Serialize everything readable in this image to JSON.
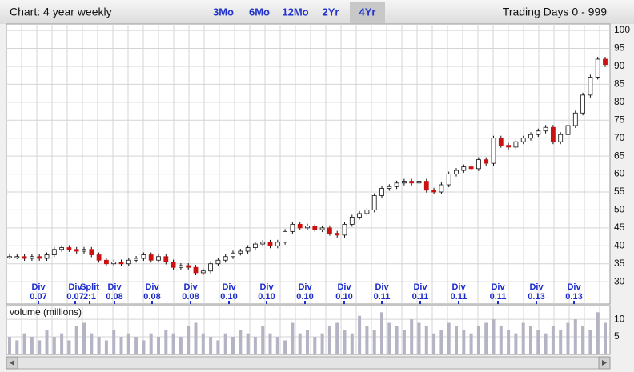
{
  "chart_data": {
    "type": "candlestick",
    "title": "Chart: 4 year weekly",
    "ranges": [
      "3Mo",
      "6Mo",
      "12Mo",
      "2Yr",
      "4Yr"
    ],
    "selected_range": 4,
    "trading_days": "Trading Days 0 - 999",
    "up_color": "#ffffff",
    "down_color": "#cc1111",
    "grid": true,
    "ylim": [
      23.8,
      101.8
    ],
    "yticks": [
      30,
      35,
      40,
      45,
      50,
      55,
      60,
      65,
      70,
      75,
      80,
      85,
      90,
      95,
      100
    ],
    "values": [
      37,
      37,
      36.5,
      37,
      36.5,
      37.5,
      39,
      39.5,
      39,
      38.5,
      39,
      37.5,
      36,
      35,
      35.5,
      35,
      36,
      36.5,
      37.5,
      36,
      37,
      35.5,
      34,
      34.5,
      34,
      32.5,
      33,
      35,
      36,
      37,
      38,
      38.5,
      39.5,
      40.5,
      41,
      40,
      41,
      44,
      46,
      45,
      45.5,
      44.5,
      45,
      43.5,
      43,
      46,
      48,
      49,
      50,
      54,
      56,
      56.5,
      57.5,
      58,
      57.5,
      58,
      55.5,
      55,
      57,
      60,
      61,
      62,
      61.5,
      64,
      63,
      70,
      68,
      67.5,
      69,
      70,
      71,
      72,
      73,
      69,
      71,
      73.5,
      77,
      82,
      87,
      92,
      90.5
    ],
    "events": [
      {
        "label": "Div",
        "amount": "0.07"
      },
      {
        "label": "Div",
        "amount": "0.07"
      },
      {
        "label": "Split",
        "amount": "2:1"
      },
      {
        "label": "Div",
        "amount": "0.08"
      },
      {
        "label": "Div",
        "amount": "0.08"
      },
      {
        "label": "Div",
        "amount": "0.08"
      },
      {
        "label": "Div",
        "amount": "0.10"
      },
      {
        "label": "Div",
        "amount": "0.10"
      },
      {
        "label": "Div",
        "amount": "0.10"
      },
      {
        "label": "Div",
        "amount": "0.10"
      },
      {
        "label": "Div",
        "amount": "0.11"
      },
      {
        "label": "Div",
        "amount": "0.11"
      },
      {
        "label": "Div",
        "amount": "0.11"
      },
      {
        "label": "Div",
        "amount": "0.11"
      },
      {
        "label": "Div",
        "amount": "0.13"
      },
      {
        "label": "Div",
        "amount": "0.13"
      }
    ],
    "volume": {
      "label": "volume (millions)",
      "color": "#b4b4c4",
      "ylim": [
        0,
        13.9
      ],
      "yticks": [
        5,
        10
      ],
      "values": [
        5,
        4,
        6,
        5,
        4,
        7,
        5,
        6,
        4,
        8,
        9,
        6,
        5,
        4,
        7,
        5,
        6,
        5,
        4,
        6,
        5,
        7,
        6,
        5,
        8,
        9,
        6,
        5,
        4,
        6,
        5,
        7,
        6,
        5,
        8,
        6,
        5,
        4,
        9,
        6,
        7,
        5,
        6,
        8,
        9,
        7,
        6,
        11,
        8,
        7,
        12,
        9,
        8,
        7,
        10,
        9,
        8,
        6,
        7,
        9,
        8,
        7,
        6,
        8,
        9,
        10,
        8,
        7,
        6,
        9,
        8,
        7,
        6,
        8,
        7,
        9,
        10,
        8,
        7,
        12,
        9
      ]
    }
  }
}
